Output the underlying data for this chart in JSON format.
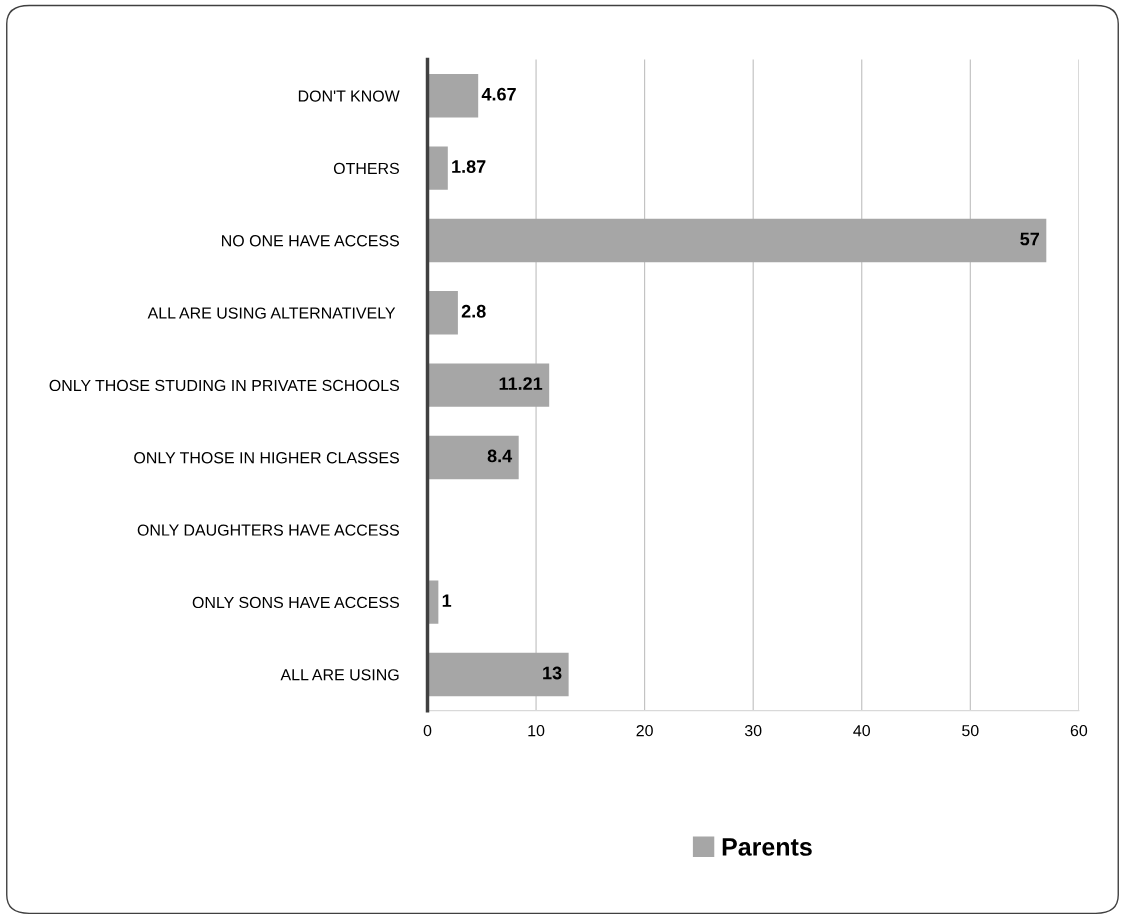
{
  "chart_data": {
    "type": "bar",
    "orientation": "horizontal",
    "categories": [
      "DON'T KNOW",
      "OTHERS",
      "NO ONE HAVE ACCESS",
      "ALL ARE USING ALTERNATIVELY ",
      "ONLY THOSE STUDING IN PRIVATE SCHOOLS",
      "ONLY THOSE IN HIGHER CLASSES",
      "ONLY DAUGHTERS HAVE ACCESS",
      "ONLY SONS HAVE ACCESS",
      "ALL ARE USING"
    ],
    "series": [
      {
        "name": "Parents",
        "color": "#a6a6a6",
        "values": [
          4.67,
          1.87,
          57,
          2.8,
          11.21,
          8.4,
          null,
          1,
          13
        ]
      }
    ],
    "xlim": [
      0,
      60
    ],
    "xticks": [
      0,
      10,
      20,
      30,
      40,
      50,
      60
    ],
    "grid": "x",
    "legend": "bottom",
    "data_labels": true
  }
}
